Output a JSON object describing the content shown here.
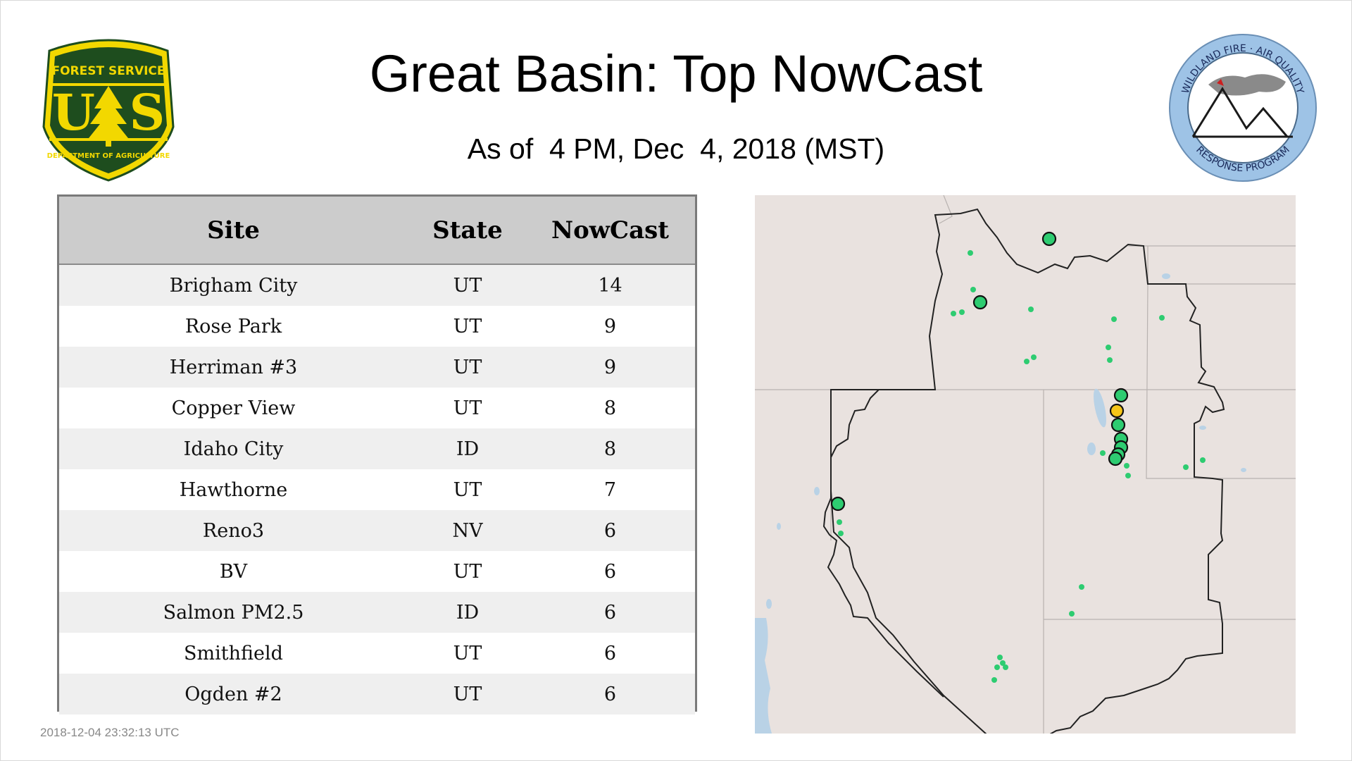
{
  "header": {
    "title": "Great Basin: Top NowCast",
    "subtitle": "As of  4 PM, Dec  4, 2018 (MST)"
  },
  "logos": {
    "forest_service": {
      "top_text": "FOREST SERVICE",
      "letters": "U  S",
      "bottom_text": "DEPARTMENT OF AGRICULTURE",
      "icon": "pine-tree-shield-icon"
    },
    "wildland_fire": {
      "top_text": "WILDLAND FIRE · AIR QUALITY",
      "bottom_text": "RESPONSE PROGRAM",
      "icon": "mountains-smoke-icon"
    }
  },
  "table": {
    "headers": {
      "site": "Site",
      "state": "State",
      "nowcast": "NowCast"
    },
    "rows": [
      {
        "site": "Brigham City",
        "state": "UT",
        "nowcast": "14"
      },
      {
        "site": "Rose Park",
        "state": "UT",
        "nowcast": "9"
      },
      {
        "site": "Herriman #3",
        "state": "UT",
        "nowcast": "9"
      },
      {
        "site": "Copper View",
        "state": "UT",
        "nowcast": "8"
      },
      {
        "site": "Idaho City",
        "state": "ID",
        "nowcast": "8"
      },
      {
        "site": "Hawthorne",
        "state": "UT",
        "nowcast": "7"
      },
      {
        "site": "Reno3",
        "state": "NV",
        "nowcast": "6"
      },
      {
        "site": "BV",
        "state": "UT",
        "nowcast": "6"
      },
      {
        "site": "Salmon PM2.5",
        "state": "ID",
        "nowcast": "6"
      },
      {
        "site": "Smithfield",
        "state": "UT",
        "nowcast": "6"
      },
      {
        "site": "Ogden #2",
        "state": "UT",
        "nowcast": "6"
      }
    ]
  },
  "timestamp": "2018-12-04 23:32:13 UTC",
  "map": {
    "colors": {
      "good": "#2ecc71",
      "moderate": "#f5c518",
      "land": "#e9e2df",
      "water": "#b9d2e6",
      "outline": "#222222"
    }
  },
  "colors": {
    "header_bg": "#cccccc",
    "row_alt": "#efefef",
    "fs_green": "#1e4d1e",
    "fs_gold": "#f2d800",
    "wf_blue": "#9ec3e6"
  }
}
